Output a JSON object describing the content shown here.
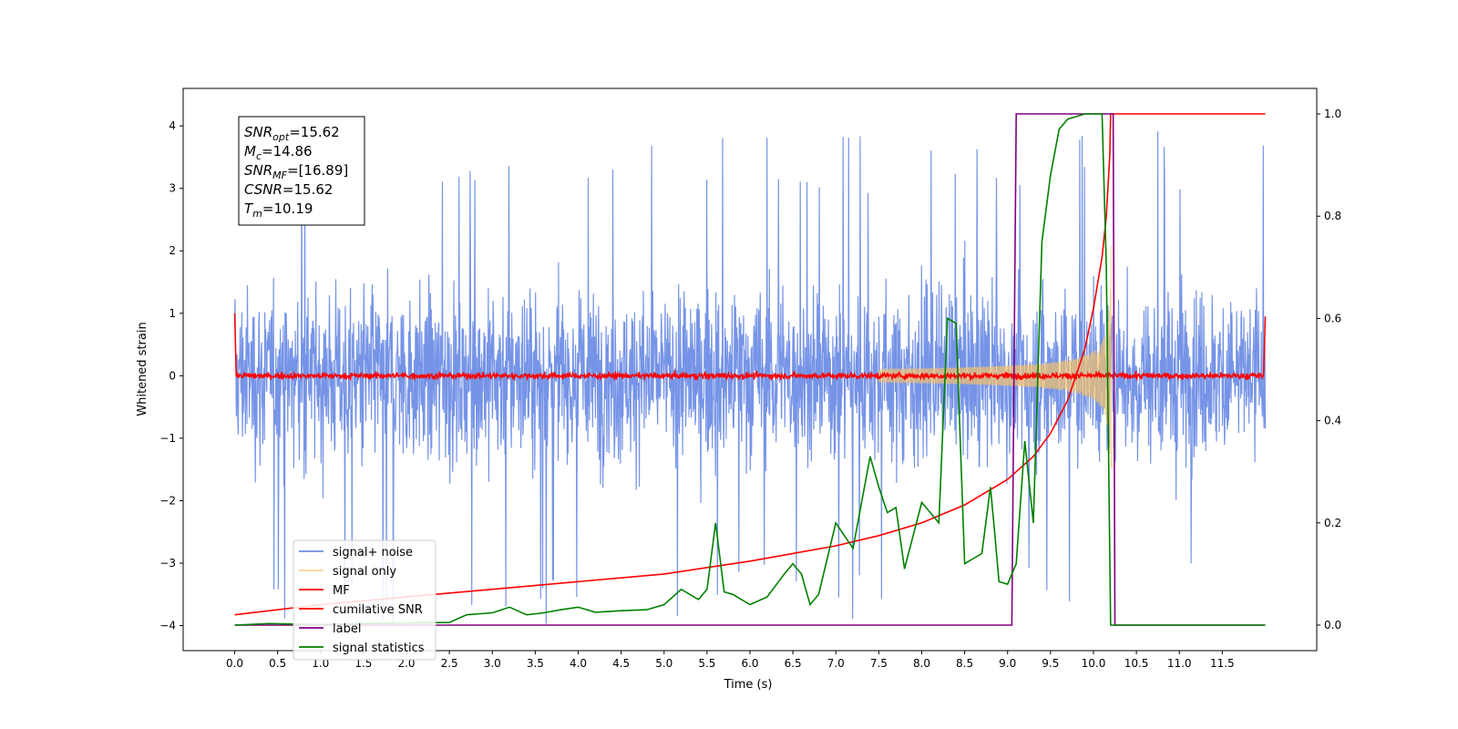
{
  "chart_data": {
    "type": "line",
    "title": "",
    "xlabel": "Time (s)",
    "ylabel": "Whitened strain",
    "xlim": [
      -0.6,
      12.6
    ],
    "ylim": [
      -4.4,
      4.6
    ],
    "y2lim": [
      -0.05,
      1.05
    ],
    "x_ticks": [
      0.0,
      0.5,
      1.0,
      1.5,
      2.0,
      2.5,
      3.0,
      3.5,
      4.0,
      4.5,
      5.0,
      5.5,
      6.0,
      6.5,
      7.0,
      7.5,
      8.0,
      8.5,
      9.0,
      9.5,
      10.0,
      10.5,
      11.0,
      11.5
    ],
    "x_tick_labels": [
      "0.0",
      "0.5",
      "1.0",
      "1.5",
      "2.0",
      "2.5",
      "3.0",
      "3.5",
      "4.0",
      "4.5",
      "5.0",
      "5.5",
      "6.0",
      "6.5",
      "7.0",
      "7.5",
      "8.0",
      "8.5",
      "9.0",
      "9.5",
      "10.0",
      "10.5",
      "11.0",
      "11.5"
    ],
    "y_ticks": [
      -4,
      -3,
      -2,
      -1,
      0,
      1,
      2,
      3,
      4
    ],
    "y_tick_labels": [
      "−4",
      "−3",
      "−2",
      "−1",
      "0",
      "1",
      "2",
      "3",
      "4"
    ],
    "y2_ticks": [
      0.0,
      0.2,
      0.4,
      0.6,
      0.8,
      1.0
    ],
    "y2_tick_labels": [
      "0.0",
      "0.2",
      "0.4",
      "0.6",
      "0.8",
      "1.0"
    ],
    "grid": false,
    "legend_position": "lower-left",
    "series": [
      {
        "name": "signal+ noise",
        "color": "#6f8ee6",
        "axis": "left",
        "kind": "noise",
        "x_range": [
          0.0,
          12.0
        ],
        "amplitude_band": [
          -2.6,
          2.6
        ],
        "peak_max": 4.15,
        "peak_min": -3.97
      },
      {
        "name": "signal only",
        "color": "#f5c26b",
        "axis": "left",
        "kind": "chirp",
        "x_range": [
          7.5,
          10.24
        ],
        "merger_time": 10.19,
        "max_amplitude": 2.3
      },
      {
        "name": "MF",
        "color": "#ff0000",
        "axis": "left",
        "kind": "noise",
        "x_range": [
          0.0,
          12.0
        ],
        "amplitude_band": [
          -0.08,
          0.08
        ],
        "edge_values": [
          1.0,
          0.95
        ]
      },
      {
        "name": "cumilative SNR",
        "color": "#ff0000",
        "axis": "right",
        "x": [
          0.0,
          1.0,
          2.0,
          3.0,
          4.0,
          5.0,
          6.0,
          6.5,
          7.0,
          7.5,
          8.0,
          8.5,
          9.0,
          9.3,
          9.5,
          9.7,
          9.9,
          10.0,
          10.1,
          10.15,
          10.19,
          10.2,
          12.0
        ],
        "values": [
          0.02,
          0.04,
          0.055,
          0.07,
          0.085,
          0.1,
          0.125,
          0.14,
          0.155,
          0.175,
          0.2,
          0.235,
          0.285,
          0.33,
          0.375,
          0.44,
          0.54,
          0.62,
          0.72,
          0.8,
          0.92,
          1.0,
          1.0
        ]
      },
      {
        "name": "label",
        "color": "#800080",
        "axis": "right",
        "x": [
          0.0,
          9.05,
          9.1,
          10.23,
          10.25,
          12.0
        ],
        "values": [
          0.0,
          0.0,
          1.0,
          1.0,
          0.0,
          0.0
        ]
      },
      {
        "name": "signal statistics",
        "color": "#008000",
        "axis": "right",
        "x": [
          0.0,
          0.4,
          1.0,
          1.5,
          2.0,
          2.5,
          2.7,
          3.0,
          3.2,
          3.4,
          3.6,
          3.8,
          4.0,
          4.2,
          4.5,
          4.8,
          5.0,
          5.2,
          5.3,
          5.4,
          5.5,
          5.6,
          5.7,
          5.8,
          6.0,
          6.2,
          6.4,
          6.5,
          6.6,
          6.7,
          6.8,
          7.0,
          7.2,
          7.4,
          7.5,
          7.6,
          7.7,
          7.8,
          8.0,
          8.2,
          8.3,
          8.4,
          8.5,
          8.6,
          8.7,
          8.8,
          8.85,
          8.9,
          9.0,
          9.1,
          9.2,
          9.3,
          9.4,
          9.5,
          9.6,
          9.7,
          9.8,
          9.9,
          10.0,
          10.1,
          10.15,
          10.2,
          10.25,
          11.0,
          12.0
        ],
        "values": [
          0.0,
          0.003,
          0.001,
          0.003,
          0.004,
          0.005,
          0.02,
          0.024,
          0.035,
          0.02,
          0.024,
          0.03,
          0.035,
          0.025,
          0.028,
          0.03,
          0.04,
          0.07,
          0.06,
          0.05,
          0.07,
          0.2,
          0.065,
          0.06,
          0.04,
          0.055,
          0.1,
          0.12,
          0.1,
          0.04,
          0.06,
          0.2,
          0.15,
          0.33,
          0.27,
          0.22,
          0.23,
          0.11,
          0.24,
          0.2,
          0.6,
          0.59,
          0.12,
          0.13,
          0.14,
          0.27,
          0.18,
          0.085,
          0.08,
          0.12,
          0.36,
          0.2,
          0.75,
          0.88,
          0.97,
          0.99,
          0.995,
          1.0,
          1.0,
          1.0,
          0.7,
          0.0,
          0.0,
          0.0,
          0.0
        ]
      }
    ],
    "annotation": {
      "lines": [
        {
          "base": "SNR",
          "sub": "opt",
          "text": "=15.62"
        },
        {
          "base": "M",
          "sub": "c",
          "text": "=14.86"
        },
        {
          "base": "SNR",
          "sub": "MF",
          "text": "=[16.89]"
        },
        {
          "base": "CSNR",
          "sub": "",
          "text": "=15.62"
        },
        {
          "base": "T",
          "sub": "m",
          "text": "=10.19"
        }
      ]
    }
  }
}
